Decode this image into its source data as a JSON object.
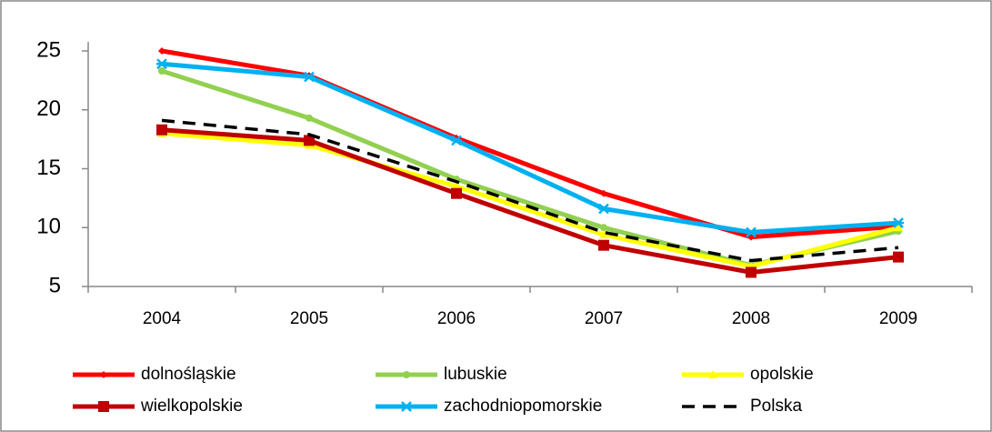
{
  "chart_data": {
    "type": "line",
    "categories": [
      "2004",
      "2005",
      "2006",
      "2007",
      "2008",
      "2009"
    ],
    "ylim": [
      5,
      25
    ],
    "yticks": [
      5,
      10,
      15,
      20,
      25
    ],
    "series": [
      {
        "name": "dolnośląskie",
        "color": "#ff0000",
        "marker": "diamond",
        "values": [
          25,
          22.9,
          17.6,
          12.9,
          9.2,
          10.1
        ]
      },
      {
        "name": "lubuskie",
        "color": "#92d050",
        "marker": "circle",
        "values": [
          23.3,
          19.3,
          14.1,
          10.0,
          6.8,
          9.7
        ]
      },
      {
        "name": "opolskie",
        "color": "#ffff00",
        "marker": "triangle",
        "values": [
          18.0,
          17.0,
          13.5,
          9.4,
          6.7,
          10.0
        ]
      },
      {
        "name": "wielkopolskie",
        "color": "#c00000",
        "marker": "square",
        "values": [
          18.3,
          17.4,
          12.9,
          8.5,
          6.2,
          7.5
        ]
      },
      {
        "name": "zachodniopomorskie",
        "color": "#00b0f0",
        "marker": "star",
        "values": [
          23.9,
          22.8,
          17.4,
          11.6,
          9.6,
          10.4
        ]
      },
      {
        "name": "Polska",
        "color": "#000000",
        "marker": "dash",
        "values": [
          19.1,
          17.9,
          13.9,
          9.6,
          7.2,
          8.3
        ]
      }
    ]
  }
}
